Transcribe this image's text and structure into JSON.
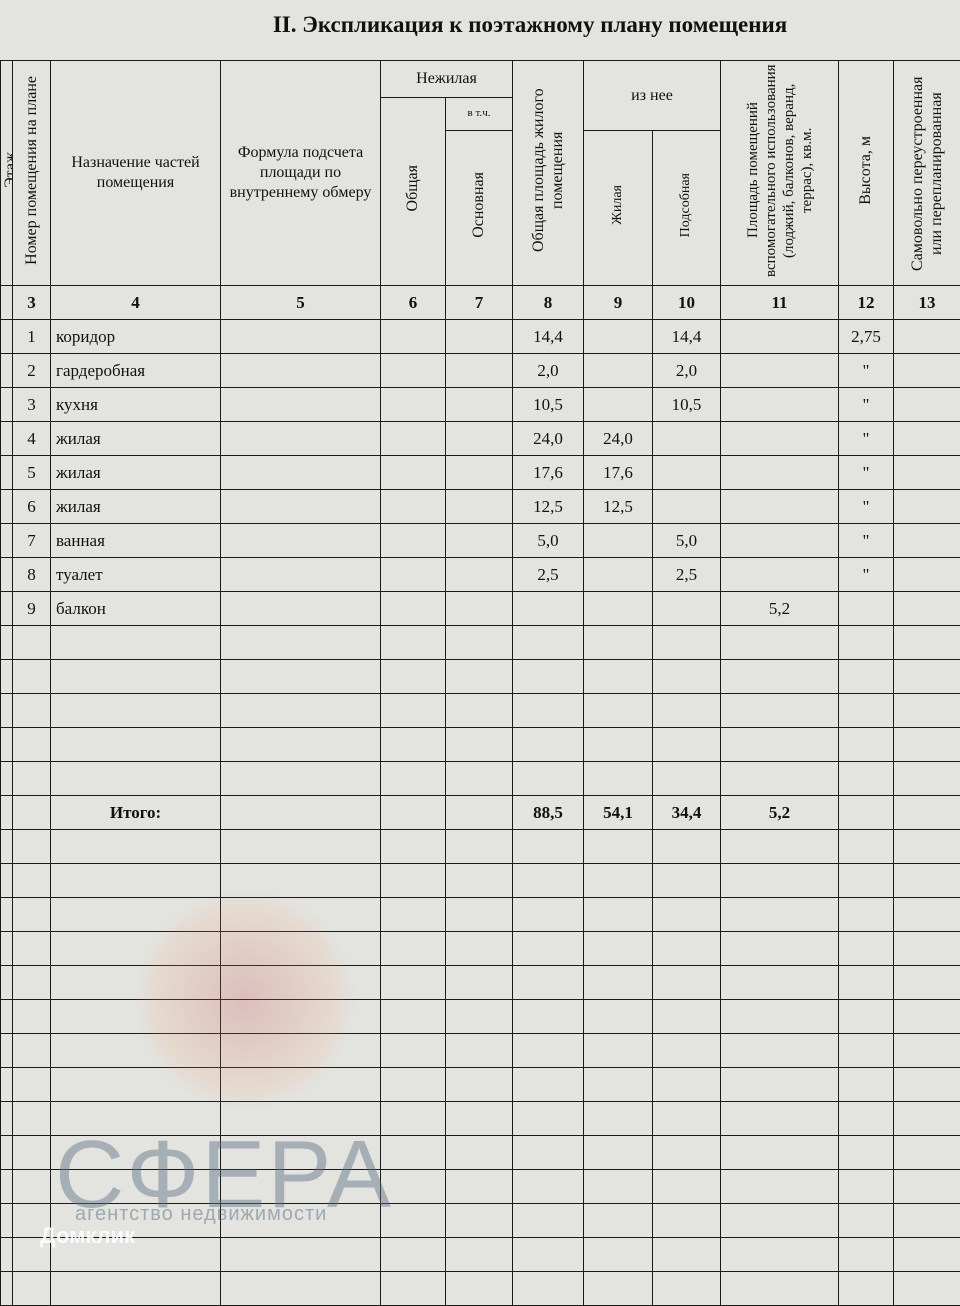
{
  "title": "II. Экспликация к поэтажному плану помещения",
  "headers": {
    "c2": "Этаж",
    "c3": "Номер помещения на плане",
    "c4": "Назначение частей помещения",
    "c5": "Формула подсчета площади по внутреннему обмеру",
    "nonres": "Нежилая",
    "c6": "Общая",
    "incl": "в т.ч.",
    "c7": "Основная",
    "c8": "Общая площадь жилого помещения",
    "of_it": "из нее",
    "c9": "Жилая",
    "c10": "Подсобная",
    "c11": "Площадь помещений вспомогательного использования (лоджий, балконов, веранд, террас), кв.м.",
    "c12": "Высота, м",
    "c13": "Самовольно переустроенная или перепланированная"
  },
  "col_numbers": [
    "",
    "3",
    "4",
    "5",
    "6",
    "7",
    "8",
    "9",
    "10",
    "11",
    "12",
    "13"
  ],
  "rows": [
    [
      "",
      "1",
      "коридор",
      "",
      "",
      "",
      "14,4",
      "",
      "14,4",
      "",
      "2,75",
      ""
    ],
    [
      "",
      "2",
      "гардеробная",
      "",
      "",
      "",
      "2,0",
      "",
      "2,0",
      "",
      "\"",
      ""
    ],
    [
      "",
      "3",
      "кухня",
      "",
      "",
      "",
      "10,5",
      "",
      "10,5",
      "",
      "\"",
      ""
    ],
    [
      "",
      "4",
      "жилая",
      "",
      "",
      "",
      "24,0",
      "24,0",
      "",
      "",
      "\"",
      ""
    ],
    [
      "",
      "5",
      "жилая",
      "",
      "",
      "",
      "17,6",
      "17,6",
      "",
      "",
      "\"",
      ""
    ],
    [
      "",
      "6",
      "жилая",
      "",
      "",
      "",
      "12,5",
      "12,5",
      "",
      "",
      "\"",
      ""
    ],
    [
      "",
      "7",
      "ванная",
      "",
      "",
      "",
      "5,0",
      "",
      "5,0",
      "",
      "\"",
      ""
    ],
    [
      "",
      "8",
      "туалет",
      "",
      "",
      "",
      "2,5",
      "",
      "2,5",
      "",
      "\"",
      ""
    ],
    [
      "",
      "9",
      "балкон",
      "",
      "",
      "",
      "",
      "",
      "",
      "5,2",
      "",
      ""
    ]
  ],
  "total": {
    "label": "Итого:",
    "c8": "88,5",
    "c9": "54,1",
    "c10": "34,4",
    "c11": "5,2"
  },
  "watermark": {
    "brand": "СФЕРА",
    "tagline": "агентство недвижимости",
    "platform": "Домклик"
  }
}
